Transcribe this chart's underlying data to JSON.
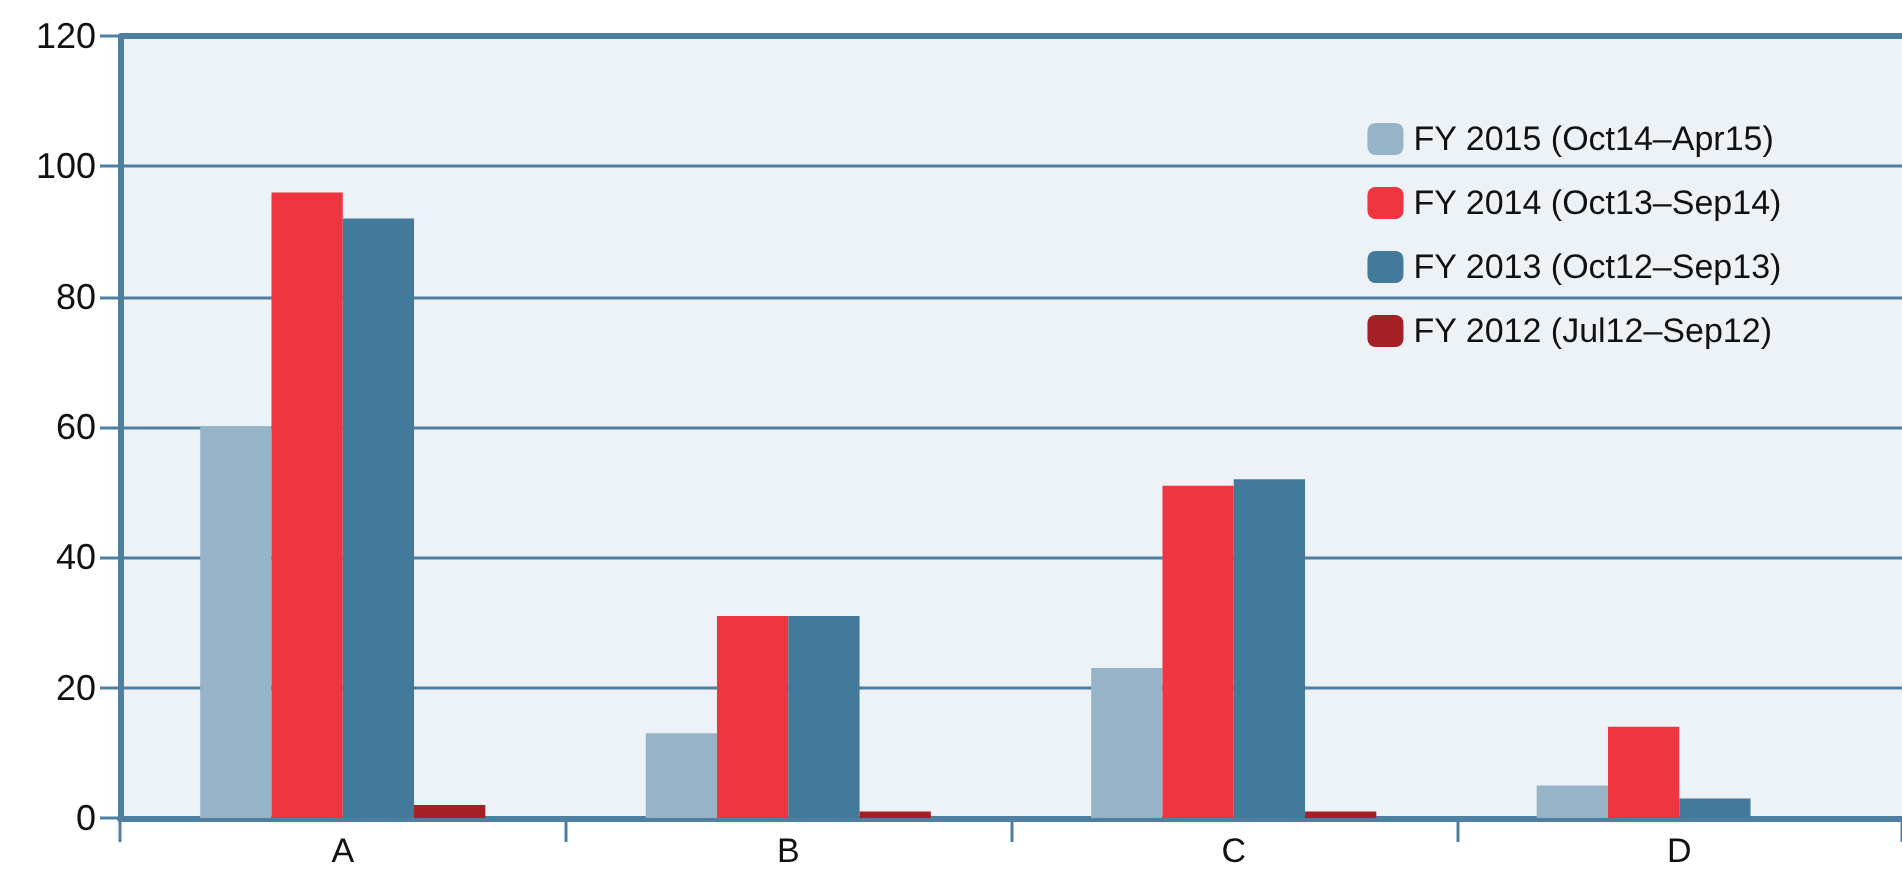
{
  "chart_data": {
    "type": "bar",
    "categories": [
      "A",
      "B",
      "C",
      "D"
    ],
    "series": [
      {
        "name": "FY 2015 (Oct14–Apr15)",
        "color": "#96b3c8",
        "values": [
          60,
          13,
          23,
          5
        ]
      },
      {
        "name": "FY 2014 (Oct13–Sep14)",
        "color": "#ee3540",
        "values": [
          96,
          31,
          51,
          14
        ]
      },
      {
        "name": "FY 2013 (Oct12–Sep13)",
        "color": "#43799b",
        "values": [
          92,
          31,
          52,
          3
        ]
      },
      {
        "name": "FY 2012 (Jul12–Sep12)",
        "color": "#a51f27",
        "values": [
          2,
          1,
          1,
          0
        ]
      }
    ],
    "ylim": [
      0,
      120
    ],
    "yticks": [
      0,
      20,
      40,
      60,
      80,
      100,
      120
    ],
    "grid": "y",
    "legend": "top right"
  }
}
